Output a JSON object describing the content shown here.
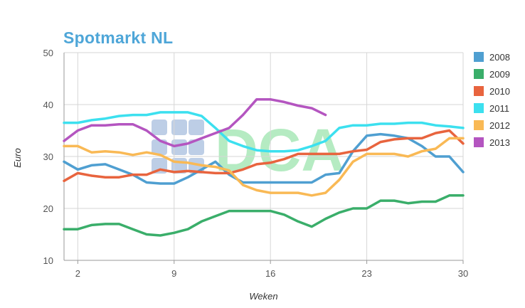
{
  "chart_data": {
    "type": "line",
    "title": "Spotmarkt NL",
    "xlabel": "Weken",
    "ylabel": "Euro",
    "xlim": [
      1,
      30
    ],
    "ylim": [
      10,
      50
    ],
    "xticks": [
      2,
      9,
      16,
      23,
      30
    ],
    "yticks": [
      10,
      20,
      30,
      40,
      50
    ],
    "grid": true,
    "legend_position": "right",
    "watermark": "DCA",
    "series": [
      {
        "name": "2008",
        "color": "#4f9fd1",
        "x": [
          1,
          2,
          3,
          4,
          5,
          6,
          7,
          8,
          9,
          10,
          11,
          12,
          13,
          14,
          15,
          16,
          17,
          18,
          19,
          20,
          21,
          22,
          23,
          24,
          25,
          26,
          27,
          28,
          29,
          30
        ],
        "y": [
          29,
          27.5,
          28.3,
          28.5,
          27.5,
          26.5,
          25,
          24.8,
          24.8,
          26,
          27.5,
          29,
          26.5,
          25,
          25,
          25,
          25,
          25,
          25,
          26.5,
          26.8,
          31,
          34,
          34.3,
          34,
          33.5,
          32,
          30,
          30,
          27
        ]
      },
      {
        "name": "2009",
        "color": "#3aae6a",
        "x": [
          1,
          2,
          3,
          4,
          5,
          6,
          7,
          8,
          9,
          10,
          11,
          12,
          13,
          14,
          15,
          16,
          17,
          18,
          19,
          20,
          21,
          22,
          23,
          24,
          25,
          26,
          27,
          28,
          29,
          30
        ],
        "y": [
          16,
          16,
          16.8,
          17,
          17,
          16,
          15,
          14.8,
          15.3,
          16,
          17.5,
          18.5,
          19.5,
          19.5,
          19.5,
          19.5,
          18.8,
          17.5,
          16.5,
          18,
          19.2,
          20,
          20,
          21.5,
          21.5,
          21,
          21.3,
          21.3,
          22.5,
          22.5
        ]
      },
      {
        "name": "2010",
        "color": "#e8643e",
        "x": [
          1,
          2,
          3,
          4,
          5,
          6,
          7,
          8,
          9,
          10,
          11,
          12,
          13,
          14,
          15,
          16,
          17,
          18,
          19,
          20,
          21,
          22,
          23,
          24,
          25,
          26,
          27,
          28,
          29,
          30
        ],
        "y": [
          25.3,
          26.8,
          26.3,
          26,
          26,
          26.5,
          26.5,
          27.5,
          27,
          27.2,
          27,
          26.8,
          26.8,
          27.5,
          28.5,
          28.8,
          29.5,
          30.5,
          30.5,
          30.5,
          30.5,
          31,
          31.3,
          32.8,
          33.3,
          33.5,
          33.5,
          34.5,
          35,
          32.5
        ]
      },
      {
        "name": "2011",
        "color": "#3ce0ef",
        "x": [
          1,
          2,
          3,
          4,
          5,
          6,
          7,
          8,
          9,
          10,
          11,
          12,
          13,
          14,
          15,
          16,
          17,
          18,
          19,
          20,
          21,
          22,
          23,
          24,
          25,
          26,
          27,
          28,
          29,
          30
        ],
        "y": [
          36.5,
          36.5,
          37,
          37.3,
          37.8,
          38,
          38,
          38.5,
          38.5,
          38.5,
          37.8,
          35.5,
          33,
          32,
          31.2,
          31,
          31,
          31.2,
          32,
          33,
          35.5,
          36,
          36,
          36.3,
          36.3,
          36.5,
          36.5,
          36,
          35.8,
          35.5
        ]
      },
      {
        "name": "2012",
        "color": "#f9b955",
        "x": [
          1,
          2,
          3,
          4,
          5,
          6,
          7,
          8,
          9,
          10,
          11,
          12,
          13,
          14,
          15,
          16,
          17,
          18,
          19,
          20,
          21,
          22,
          23,
          24,
          25,
          26,
          27,
          28,
          29,
          30
        ],
        "y": [
          32,
          32,
          30.8,
          31,
          30.8,
          30.3,
          30.8,
          30.3,
          29,
          28.8,
          28.3,
          28,
          27.3,
          24.5,
          23.5,
          23,
          23,
          23,
          22.5,
          23,
          25.5,
          29,
          30.5,
          30.5,
          30.5,
          30,
          31,
          31.5,
          33.5,
          33.5
        ]
      },
      {
        "name": "2013",
        "color": "#b455c0",
        "x": [
          1,
          2,
          3,
          4,
          5,
          6,
          7,
          8,
          9,
          10,
          11,
          12,
          13,
          14,
          15,
          16,
          17,
          18,
          19,
          20
        ],
        "y": [
          33,
          35,
          36,
          36,
          36.2,
          36.2,
          35,
          33,
          32,
          32.5,
          33.5,
          34.5,
          35.5,
          38,
          41,
          41,
          40.5,
          39.8,
          39.3,
          38
        ]
      }
    ]
  }
}
